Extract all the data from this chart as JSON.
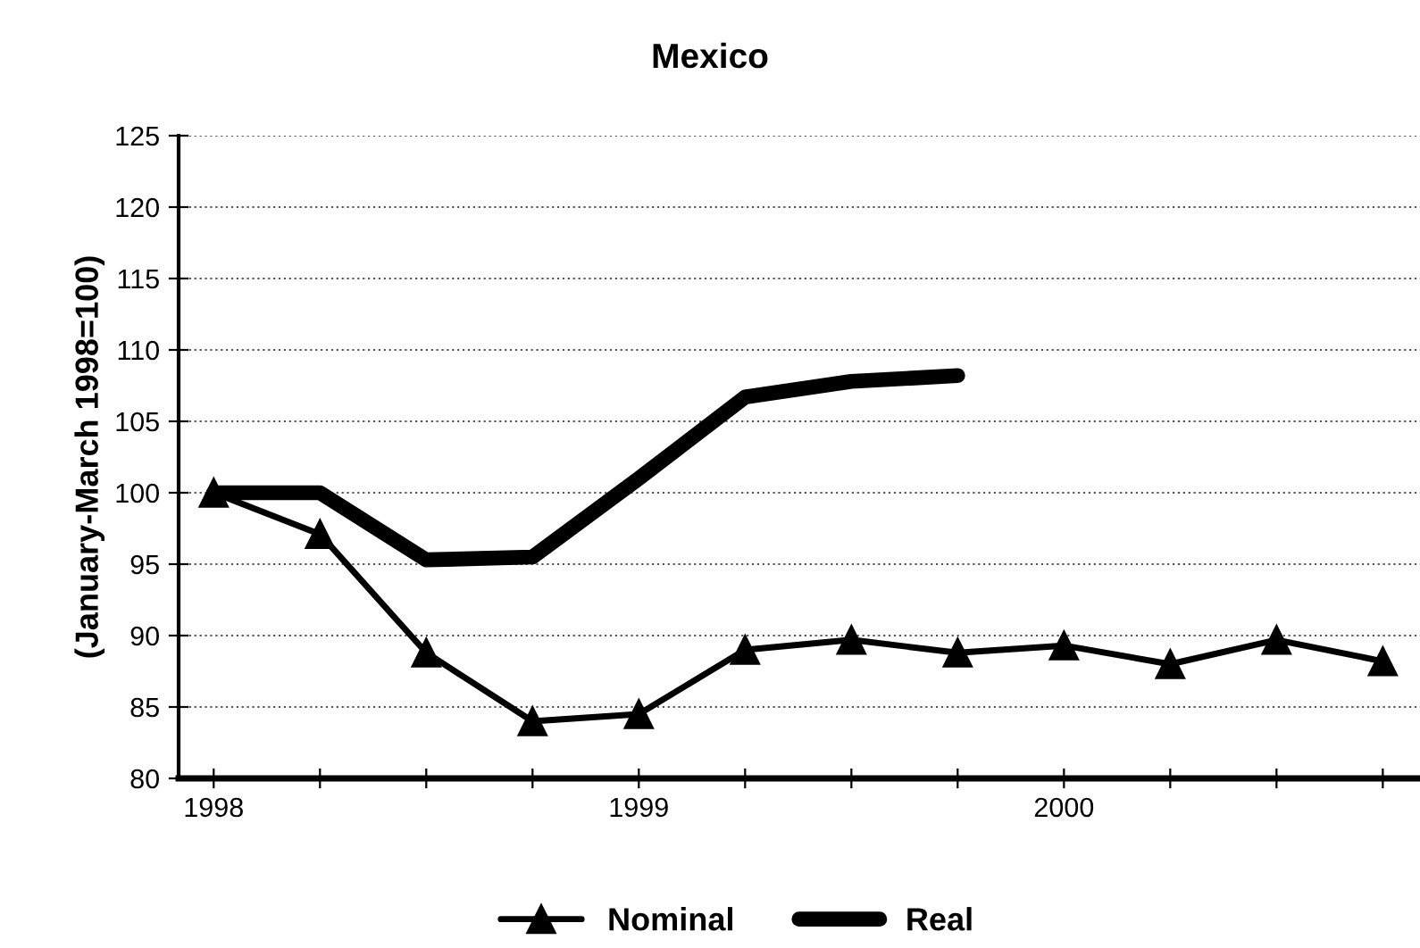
{
  "chart_data": {
    "type": "line",
    "title": "Mexico",
    "ylabel": "(January-March 1998=100)",
    "categories": [
      "1998",
      null,
      null,
      null,
      "1999",
      null,
      null,
      null,
      "2000",
      null,
      null,
      null
    ],
    "series": [
      {
        "name": "Nominal",
        "color": "#000000",
        "marker": "triangle",
        "values": [
          100,
          97.1,
          88.8,
          84,
          84.5,
          89,
          89.7,
          88.8,
          89.3,
          88,
          89.7,
          88.2
        ]
      },
      {
        "name": "Real",
        "color": "#000000",
        "marker": "none",
        "values": [
          100,
          100,
          95.3,
          95.5,
          101,
          106.7,
          107.8,
          108.2,
          null,
          null,
          null,
          null
        ]
      }
    ],
    "ylim": [
      80,
      125
    ],
    "yticks": [
      80,
      85,
      90,
      95,
      100,
      105,
      110,
      115,
      120,
      125
    ],
    "grid": "y",
    "legend": "bottom"
  }
}
